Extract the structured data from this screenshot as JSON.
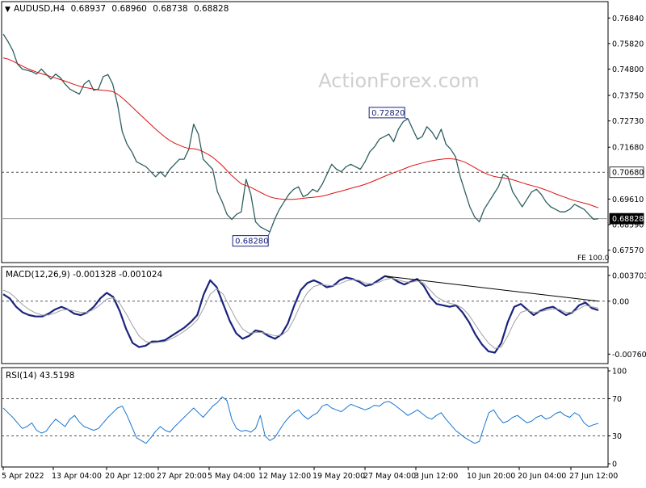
{
  "chart_data": [
    {
      "type": "line",
      "panel": "price",
      "symbol_header": "AUDUSD,H4",
      "ohlc": {
        "open": "0.68937",
        "high": "0.68960",
        "low": "0.68738",
        "close": "0.68828"
      },
      "watermark": "ActionForex.com",
      "ylim": [
        0.673,
        0.773
      ],
      "y_ticks": [
        "0.76840",
        "0.75820",
        "0.74800",
        "0.73750",
        "0.72730",
        "0.71680",
        "0.69610",
        "0.68590",
        "0.67570"
      ],
      "x_tick_labels": [
        "5 Apr 2022",
        "13 Apr 04:00",
        "20 Apr 12:00",
        "27 Apr 20:00",
        "5 May 04:00",
        "12 May 12:00",
        "19 May 20:00",
        "27 May 04:00",
        "3 Jun 12:00",
        "10 Jun 20:00",
        "20 Jun 04:00",
        "27 Jun 12:00"
      ],
      "series": [
        {
          "role": "price",
          "color": "#2f5f5f",
          "values": [
            0.762,
            0.759,
            0.7555,
            0.75,
            0.748,
            0.7475,
            0.747,
            0.746,
            0.748,
            0.746,
            0.744,
            0.746,
            0.7445,
            0.742,
            0.74,
            0.739,
            0.738,
            0.742,
            0.7435,
            0.7395,
            0.74,
            0.745,
            0.7458,
            0.742,
            0.734,
            0.723,
            0.718,
            0.715,
            0.711,
            0.71,
            0.709,
            0.707,
            0.705,
            0.707,
            0.705,
            0.708,
            0.71,
            0.712,
            0.712,
            0.716,
            0.726,
            0.722,
            0.712,
            0.71,
            0.708,
            0.699,
            0.695,
            0.69,
            0.688,
            0.69,
            0.691,
            0.704,
            0.698,
            0.687,
            0.685,
            0.684,
            0.683,
            0.688,
            0.692,
            0.695,
            0.698,
            0.7,
            0.701,
            0.697,
            0.698,
            0.7,
            0.699,
            0.702,
            0.706,
            0.71,
            0.708,
            0.707,
            0.709,
            0.71,
            0.709,
            0.708,
            0.711,
            0.715,
            0.717,
            0.72,
            0.721,
            0.722,
            0.719,
            0.724,
            0.727,
            0.7282,
            0.724,
            0.72,
            0.721,
            0.725,
            0.723,
            0.72,
            0.724,
            0.718,
            0.716,
            0.713,
            0.705,
            0.699,
            0.693,
            0.689,
            0.687,
            0.692,
            0.695,
            0.698,
            0.701,
            0.706,
            0.705,
            0.699,
            0.696,
            0.693,
            0.696,
            0.699,
            0.7,
            0.698,
            0.695,
            0.693,
            0.692,
            0.691,
            0.691,
            0.692,
            0.694,
            0.693,
            0.692,
            0.69,
            0.688,
            0.6883
          ]
        },
        {
          "role": "moving-average",
          "color": "#dd1111",
          "values": [
            0.7525,
            0.752,
            0.7512,
            0.7502,
            0.7492,
            0.7483,
            0.7475,
            0.7468,
            0.7462,
            0.7456,
            0.745,
            0.7444,
            0.7438,
            0.7432,
            0.7425,
            0.7418,
            0.7412,
            0.7407,
            0.7404,
            0.74,
            0.7397,
            0.7395,
            0.7394,
            0.739,
            0.738,
            0.7365,
            0.7348,
            0.733,
            0.7312,
            0.7294,
            0.7276,
            0.7258,
            0.724,
            0.7224,
            0.7208,
            0.7195,
            0.7184,
            0.7176,
            0.7168,
            0.7163,
            0.7162,
            0.7158,
            0.715,
            0.714,
            0.7128,
            0.7112,
            0.7095,
            0.7075,
            0.7055,
            0.7038,
            0.7022,
            0.7015,
            0.7008,
            0.6998,
            0.6988,
            0.6978,
            0.697,
            0.6965,
            0.6962,
            0.696,
            0.696,
            0.696,
            0.6962,
            0.6964,
            0.6966,
            0.6968,
            0.697,
            0.6973,
            0.6977,
            0.6983,
            0.6988,
            0.6993,
            0.6998,
            0.7004,
            0.7009,
            0.7014,
            0.702,
            0.7027,
            0.7035,
            0.7043,
            0.7051,
            0.7059,
            0.7066,
            0.7073,
            0.708,
            0.7088,
            0.7095,
            0.71,
            0.7105,
            0.711,
            0.7114,
            0.7117,
            0.712,
            0.7122,
            0.7122,
            0.712,
            0.7115,
            0.7108,
            0.7098,
            0.7087,
            0.7076,
            0.7066,
            0.7058,
            0.7052,
            0.7048,
            0.7046,
            0.7043,
            0.7038,
            0.7032,
            0.7026,
            0.702,
            0.7015,
            0.701,
            0.7004,
            0.6997,
            0.699,
            0.6982,
            0.6975,
            0.6968,
            0.6961,
            0.6955,
            0.695,
            0.6945,
            0.694,
            0.6933,
            0.6926
          ]
        }
      ],
      "horizontal_lines": [
        {
          "value": 0.7068,
          "style": "dotted",
          "label": "0.70680"
        },
        {
          "value": 0.68828,
          "style": "solid",
          "label": "0.68828"
        }
      ],
      "annotations": [
        {
          "text": "0.72820",
          "at_index": 85,
          "value": 0.7282
        },
        {
          "text": "0.68280",
          "at_index": 56,
          "value": 0.6828
        },
        {
          "text": "FE 100.0"
        }
      ]
    },
    {
      "type": "line",
      "panel": "macd",
      "title": "MACD(12,26,9) -0.001328 -0.001024",
      "ylim": [
        -0.0085,
        0.0045
      ],
      "y_ticks": [
        "0.003703",
        "0.00",
        "-0.007608"
      ],
      "series": [
        {
          "role": "macd",
          "color": "#1a237e",
          "values": [
            0.001,
            0.0004,
            -0.0008,
            -0.0016,
            -0.002,
            -0.0022,
            -0.0022,
            -0.0018,
            -0.0012,
            -0.0008,
            -0.0012,
            -0.0018,
            -0.002,
            -0.0016,
            -0.0008,
            0.0004,
            0.0012,
            0.0006,
            -0.0014,
            -0.004,
            -0.006,
            -0.0066,
            -0.0064,
            -0.0058,
            -0.0058,
            -0.0056,
            -0.005,
            -0.0044,
            -0.0038,
            -0.003,
            -0.002,
            0.001,
            0.003,
            0.002,
            -0.0004,
            -0.0028,
            -0.0046,
            -0.0054,
            -0.005,
            -0.0042,
            -0.0044,
            -0.005,
            -0.0054,
            -0.0048,
            -0.0032,
            -0.0006,
            0.0016,
            0.0026,
            0.003,
            0.0026,
            0.002,
            0.0022,
            0.003,
            0.0034,
            0.0032,
            0.0028,
            0.0022,
            0.0024,
            0.003,
            0.0036,
            0.0034,
            0.0028,
            0.0024,
            0.0028,
            0.0032,
            0.0022,
            0.0006,
            -0.0004,
            -0.0006,
            -0.0008,
            -0.0006,
            -0.0016,
            -0.003,
            -0.0048,
            -0.0062,
            -0.0072,
            -0.0074,
            -0.006,
            -0.003,
            -0.0008,
            -0.0004,
            -0.0012,
            -0.002,
            -0.0014,
            -0.001,
            -0.0008,
            -0.0014,
            -0.002,
            -0.0016,
            -0.0006,
            -0.0002,
            -0.001,
            -0.0013
          ]
        },
        {
          "role": "signal",
          "color": "#a0a0a0",
          "values": [
            0.0016,
            0.0012,
            0.0004,
            -0.0005,
            -0.0012,
            -0.0017,
            -0.002,
            -0.002,
            -0.0017,
            -0.0013,
            -0.0012,
            -0.0014,
            -0.0016,
            -0.0016,
            -0.0012,
            -0.0005,
            0.0003,
            0.0005,
            -0.0003,
            -0.0018,
            -0.0035,
            -0.005,
            -0.0058,
            -0.006,
            -0.0059,
            -0.0058,
            -0.0054,
            -0.0049,
            -0.0043,
            -0.0036,
            -0.0027,
            -0.001,
            0.001,
            0.0018,
            0.001,
            -0.0008,
            -0.0026,
            -0.004,
            -0.0046,
            -0.0045,
            -0.0045,
            -0.0047,
            -0.005,
            -0.0049,
            -0.0042,
            -0.0025,
            -0.0004,
            0.0012,
            0.0021,
            0.0024,
            0.0023,
            0.0022,
            0.0025,
            0.0029,
            0.0031,
            0.003,
            0.0026,
            0.0025,
            0.0027,
            0.0031,
            0.0033,
            0.0031,
            0.0028,
            0.0027,
            0.0029,
            0.0026,
            0.0016,
            0.0006,
            0.0001,
            -0.0003,
            -0.0005,
            -0.001,
            -0.002,
            -0.0034,
            -0.0048,
            -0.006,
            -0.0068,
            -0.0066,
            -0.005,
            -0.003,
            -0.0016,
            -0.0013,
            -0.0016,
            -0.0015,
            -0.0013,
            -0.0011,
            -0.0012,
            -0.0016,
            -0.0016,
            -0.0011,
            -0.0006,
            -0.0008,
            -0.001
          ]
        }
      ],
      "horizontal_lines": [
        {
          "value": 0.0,
          "style": "dotted"
        }
      ],
      "trendline": {
        "from": {
          "at_index": 59,
          "value": 0.0036
        },
        "to": {
          "at_index": 92,
          "value": 0.0
        }
      }
    },
    {
      "type": "line",
      "panel": "rsi",
      "title": "RSI(14) 43.5198",
      "ylim": [
        0,
        100
      ],
      "y_ticks": [
        "100",
        "70",
        "30",
        "0"
      ],
      "series": [
        {
          "role": "rsi",
          "color": "#1976d2",
          "values": [
            60,
            55,
            50,
            44,
            38,
            40,
            44,
            36,
            33,
            35,
            42,
            48,
            44,
            40,
            48,
            52,
            45,
            40,
            38,
            36,
            38,
            44,
            50,
            55,
            60,
            62,
            52,
            40,
            28,
            25,
            22,
            28,
            35,
            40,
            36,
            34,
            40,
            45,
            50,
            55,
            60,
            55,
            50,
            56,
            62,
            66,
            72,
            68,
            48,
            38,
            35,
            36,
            34,
            38,
            52,
            30,
            25,
            28,
            36,
            44,
            50,
            55,
            58,
            52,
            48,
            52,
            55,
            62,
            64,
            60,
            58,
            56,
            60,
            64,
            62,
            60,
            58,
            60,
            63,
            62,
            66,
            67,
            64,
            60,
            56,
            52,
            55,
            58,
            54,
            50,
            48,
            52,
            55,
            48,
            42,
            36,
            32,
            28,
            25,
            22,
            24,
            40,
            55,
            58,
            50,
            44,
            46,
            50,
            52,
            48,
            44,
            46,
            50,
            52,
            48,
            50,
            54,
            56,
            52,
            50,
            55,
            52,
            44,
            40,
            42,
            43.5
          ]
        }
      ],
      "horizontal_lines": [
        {
          "value": 70,
          "style": "dotted"
        },
        {
          "value": 30,
          "style": "dotted"
        }
      ]
    }
  ]
}
